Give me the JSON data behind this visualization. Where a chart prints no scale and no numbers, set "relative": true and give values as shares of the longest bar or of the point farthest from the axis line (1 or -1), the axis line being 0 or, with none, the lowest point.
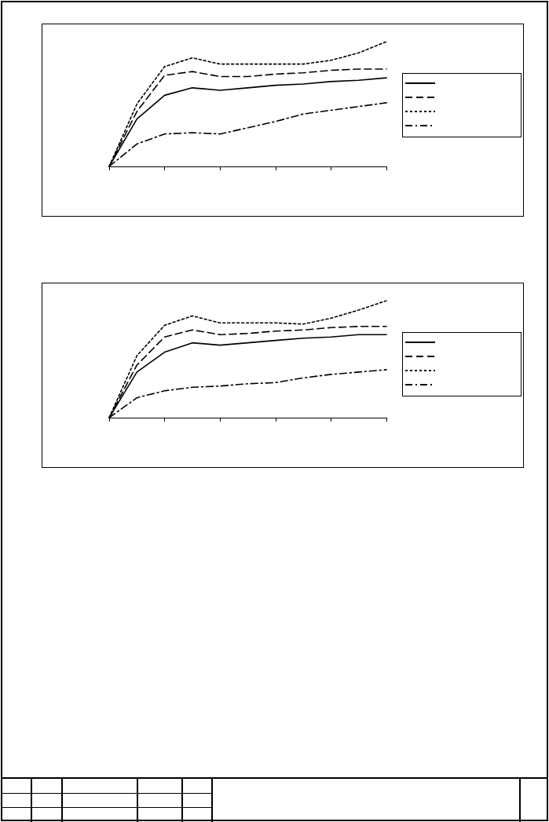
{
  "chart_data": [
    {
      "type": "line",
      "relative": true,
      "categories": [
        null,
        null,
        null,
        null,
        null,
        null,
        null,
        null,
        null,
        null,
        null
      ],
      "grid": false,
      "marker": "none",
      "series": [
        {
          "color": "#000000",
          "line_style": "solid",
          "values": [
            0,
            0.38,
            0.57,
            0.63,
            0.61,
            0.63,
            0.65,
            0.66,
            0.68,
            0.69,
            0.71
          ]
        },
        {
          "color": "#000000",
          "line_style": "dashed",
          "values": [
            0,
            0.44,
            0.73,
            0.76,
            0.72,
            0.72,
            0.74,
            0.75,
            0.77,
            0.78,
            0.78
          ]
        },
        {
          "color": "#000000",
          "line_style": "dotted",
          "values": [
            0,
            0.5,
            0.8,
            0.87,
            0.82,
            0.82,
            0.82,
            0.82,
            0.85,
            0.91,
            1
          ]
        },
        {
          "color": "#000000",
          "line_style": "dashdot",
          "values": [
            0,
            0.18,
            0.26,
            0.27,
            0.26,
            0.31,
            0.36,
            0.42,
            0.45,
            0.48,
            0.51
          ]
        }
      ]
    },
    {
      "type": "line",
      "relative": true,
      "categories": [
        null,
        null,
        null,
        null,
        null,
        null,
        null,
        null,
        null,
        null,
        null
      ],
      "grid": false,
      "marker": "none",
      "series": [
        {
          "color": "#000000",
          "line_style": "solid",
          "values": [
            0,
            0.39,
            0.56,
            0.64,
            0.62,
            0.64,
            0.66,
            0.68,
            0.69,
            0.71,
            0.71
          ]
        },
        {
          "color": "#000000",
          "line_style": "dashed",
          "values": [
            0,
            0.45,
            0.69,
            0.75,
            0.71,
            0.72,
            0.74,
            0.75,
            0.77,
            0.78,
            0.78
          ]
        },
        {
          "color": "#000000",
          "line_style": "dotted",
          "values": [
            0,
            0.53,
            0.79,
            0.87,
            0.81,
            0.81,
            0.81,
            0.8,
            0.85,
            0.92,
            1
          ]
        },
        {
          "color": "#000000",
          "line_style": "dashdot",
          "values": [
            0,
            0.17,
            0.23,
            0.26,
            0.27,
            0.29,
            0.3,
            0.34,
            0.37,
            0.39,
            0.41
          ]
        }
      ]
    }
  ]
}
